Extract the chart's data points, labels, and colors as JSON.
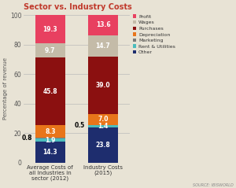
{
  "title": "Sector vs. Industry Costs",
  "bar_labels": [
    "Average Costs of\nall Industries in\nsector (2012)",
    "Industry Costs\n(2015)"
  ],
  "categories": [
    "Other",
    "Rent & Utilities",
    "Marketing",
    "Depreciation",
    "Purchases",
    "Wages",
    "Profit"
  ],
  "values": {
    "bar1": [
      14.3,
      1.9,
      0.8,
      8.3,
      45.8,
      9.7,
      19.3
    ],
    "bar2": [
      23.8,
      1.4,
      0.5,
      7.0,
      39.0,
      14.7,
      13.6
    ]
  },
  "colors": [
    "#1e2d6e",
    "#4bbcbc",
    "#7a7a7a",
    "#e8751a",
    "#8b1010",
    "#c4bba8",
    "#e84060"
  ],
  "ylabel": "Percentage of revenue",
  "ylim": [
    0,
    100
  ],
  "yticks": [
    0,
    20,
    40,
    60,
    80,
    100
  ],
  "bg_color": "#e8e3d5",
  "bar_width": 0.28,
  "bar_positions": [
    0.25,
    0.75
  ],
  "xlim": [
    0,
    1.0
  ],
  "source_text": "SOURCE: IBISWORLD",
  "legend_labels": [
    "Profit",
    "Wages",
    "Purchases",
    "Depreciation",
    "Marketing",
    "Rent & Utilities",
    "Other"
  ],
  "legend_colors": [
    "#e84060",
    "#c4bba8",
    "#8b1010",
    "#e8751a",
    "#7a7a7a",
    "#4bbcbc",
    "#1e2d6e"
  ],
  "annotations_bar1": [
    "14.3",
    "1.9",
    "0.8",
    "8.3",
    "45.8",
    "9.7",
    "19.3"
  ],
  "annotations_bar2": [
    "23.8",
    "1.4",
    "0.5",
    "7.0",
    "39.0",
    "14.7",
    "13.6"
  ],
  "outside_left_indices": [
    2
  ]
}
